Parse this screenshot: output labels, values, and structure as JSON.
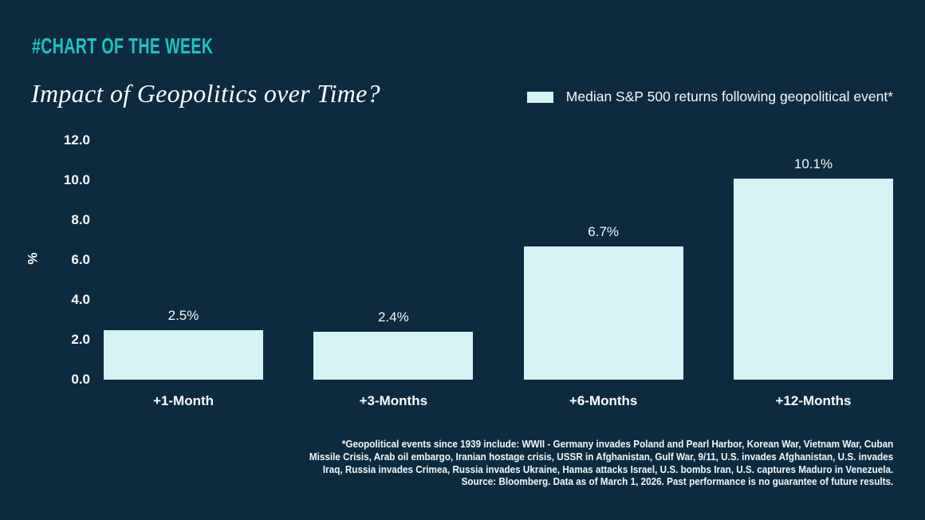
{
  "page": {
    "colors": {
      "background": "#0c2a40",
      "accent": "#1cc3bf",
      "bar": "#d5f3f4",
      "text": "#ffffff"
    }
  },
  "header": {
    "kicker": "#CHART OF THE WEEK",
    "title": "Impact of Geopolitics over Time?"
  },
  "legend": {
    "label": "Median S&P 500 returns following geopolitical event*",
    "swatch_color": "#d5f3f4"
  },
  "chart_data": {
    "type": "bar",
    "title": "Impact of Geopolitics over Time?",
    "categories": [
      "+1-Month",
      "+3-Months",
      "+6-Months",
      "+12-Months"
    ],
    "values": [
      2.5,
      2.4,
      6.7,
      10.1
    ],
    "value_labels": [
      "2.5%",
      "2.4%",
      "6.7%",
      "10.1%"
    ],
    "xlabel": "",
    "ylabel": "%",
    "ylim": [
      0,
      12
    ],
    "yticks": [
      0,
      2,
      4,
      6,
      8,
      10,
      12
    ],
    "ytick_labels": [
      "0.0",
      "2.0",
      "4.0",
      "6.0",
      "8.0",
      "10.0",
      "12.0"
    ],
    "grid": false,
    "legend_entries": [
      "Median S&P 500 returns following geopolitical event*"
    ],
    "legend_position": "top-right",
    "bar_color": "#d5f3f4"
  },
  "footnote": {
    "lines": [
      "*Geopolitical events since 1939 include: WWII - Germany invades Poland and Pearl Harbor, Korean War, Vietnam War, Cuban",
      "Missile Crisis, Arab oil embargo, Iranian hostage crisis, USSR in Afghanistan, Gulf War, 9/11, U.S. invades Afghanistan, U.S. invades",
      "Iraq, Russia invades Crimea, Russia invades Ukraine, Hamas attacks Israel, U.S. bombs Iran, U.S. captures Maduro in Venezuela.",
      "Source: Bloomberg. Data as of March 1, 2026. Past performance is no guarantee of future results."
    ]
  }
}
